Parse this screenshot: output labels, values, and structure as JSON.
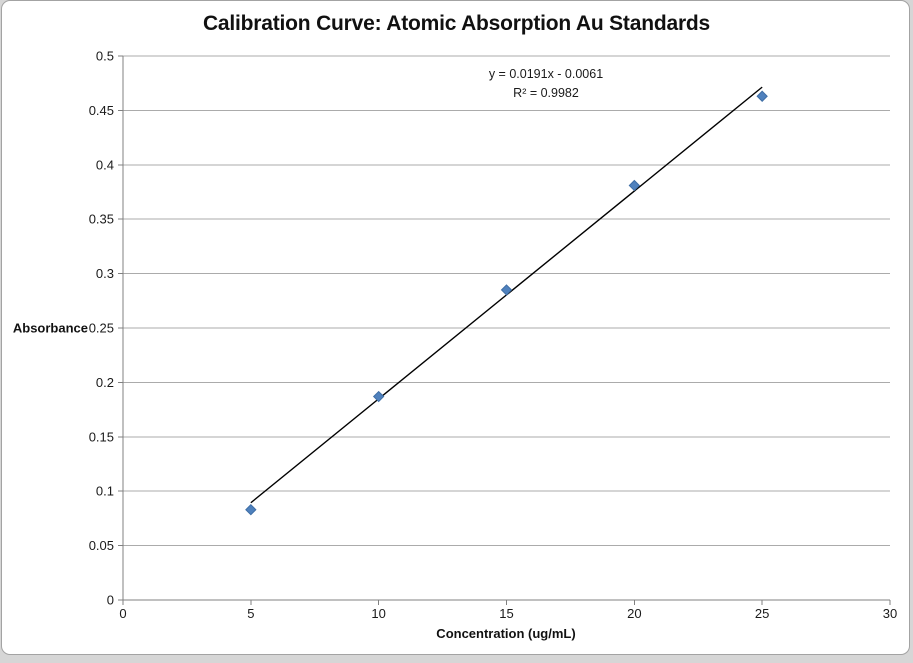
{
  "chart_data": {
    "type": "scatter",
    "title": "Calibration Curve: Atomic Absorption Au Standards",
    "xlabel": "Concentration (ug/mL)",
    "ylabel": "Absorbance",
    "x": [
      5,
      10,
      15,
      20,
      25
    ],
    "y": [
      0.083,
      0.187,
      0.285,
      0.381,
      0.463
    ],
    "xlim": [
      0,
      30
    ],
    "xstep": 5,
    "ylim": [
      0,
      0.5
    ],
    "ystep": 0.05,
    "grid": "horizontal-major-only",
    "legend": "none",
    "trendline": {
      "slope": 0.0191,
      "intercept": -0.0061,
      "x_start": 5,
      "x_end": 25,
      "equation_label": "y = 0.0191x - 0.0061",
      "r_squared_label": "R² = 0.9982"
    },
    "colors": {
      "marker_fill": "#4f81bd",
      "marker_edge": "#3f6ea5",
      "trendline": "#000000",
      "gridline": "#ababab",
      "axis": "#808080",
      "tick_text": "#1a1a1a",
      "frame_border": "#a3a3a3",
      "plot_bg": "#ffffff"
    }
  }
}
